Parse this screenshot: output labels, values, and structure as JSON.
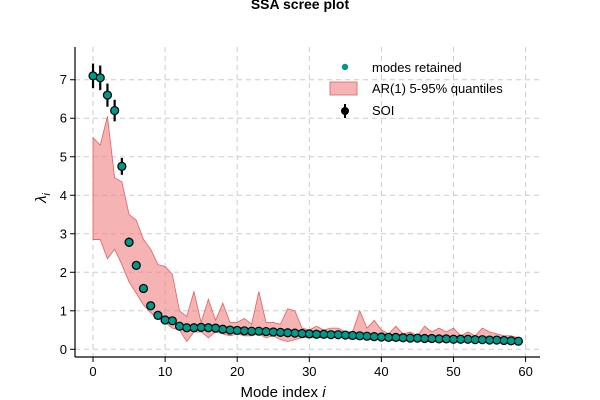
{
  "chart_data": {
    "type": "scatter",
    "title": "SSA scree plot",
    "xlabel": "Mode index i",
    "ylabel": "λ_i",
    "xlim": [
      -2.5,
      62
    ],
    "ylim": [
      -0.2,
      7.85
    ],
    "x_ticks": [
      0,
      10,
      20,
      30,
      40,
      50,
      60
    ],
    "y_ticks": [
      0,
      1,
      2,
      3,
      4,
      5,
      6,
      7
    ],
    "grid": true,
    "legend_position": "top-right",
    "colors": {
      "retained": "#009688",
      "band_fill": "#f08080",
      "band_edge": "#e06060",
      "soi": "#000000",
      "grid": "#cccccc"
    },
    "series": [
      {
        "name": "SOI",
        "kind": "errorbar",
        "x": [
          0,
          1,
          2,
          3,
          4,
          5,
          6,
          7,
          8,
          9,
          10,
          11,
          12,
          13,
          14,
          15,
          16,
          17,
          18,
          19,
          20,
          21,
          22,
          23,
          24,
          25,
          26,
          27,
          28,
          29,
          30,
          31,
          32,
          33,
          34,
          35,
          36,
          37,
          38,
          39,
          40,
          41,
          42,
          43,
          44,
          45,
          46,
          47,
          48,
          49,
          50,
          51,
          52,
          53,
          54,
          55,
          56,
          57,
          58,
          59
        ],
        "values": [
          7.1,
          7.05,
          6.6,
          6.2,
          4.75,
          2.78,
          2.18,
          1.58,
          1.13,
          0.88,
          0.76,
          0.74,
          0.6,
          0.56,
          0.56,
          0.57,
          0.56,
          0.55,
          0.52,
          0.5,
          0.49,
          0.48,
          0.47,
          0.47,
          0.46,
          0.45,
          0.44,
          0.43,
          0.42,
          0.41,
          0.4,
          0.39,
          0.39,
          0.38,
          0.38,
          0.37,
          0.36,
          0.35,
          0.34,
          0.33,
          0.32,
          0.31,
          0.31,
          0.3,
          0.29,
          0.29,
          0.28,
          0.28,
          0.27,
          0.27,
          0.26,
          0.26,
          0.26,
          0.25,
          0.25,
          0.24,
          0.24,
          0.23,
          0.22,
          0.21
        ],
        "err": [
          0.32,
          0.32,
          0.3,
          0.28,
          0.22,
          0.12,
          0.1,
          0.07,
          0.05,
          0.04,
          0.04,
          0.04,
          0.03,
          0.03,
          0.03,
          0.03,
          0.03,
          0.03,
          0.03,
          0.03,
          0.03,
          0.03,
          0.03,
          0.03,
          0.03,
          0.03,
          0.03,
          0.03,
          0.03,
          0.03,
          0.03,
          0.03,
          0.03,
          0.03,
          0.03,
          0.03,
          0.03,
          0.03,
          0.03,
          0.03,
          0.03,
          0.03,
          0.03,
          0.03,
          0.03,
          0.03,
          0.03,
          0.03,
          0.03,
          0.03,
          0.03,
          0.03,
          0.03,
          0.03,
          0.03,
          0.03,
          0.03,
          0.03,
          0.03,
          0.03
        ]
      },
      {
        "name": "modes retained",
        "kind": "markers",
        "x": [
          0,
          1,
          2,
          3,
          4,
          5,
          6,
          7,
          8,
          9,
          10,
          11,
          12,
          13,
          14,
          15,
          16,
          17,
          18,
          19,
          20,
          21,
          22,
          23,
          24,
          25,
          26,
          27,
          28,
          29,
          30,
          31,
          32,
          33,
          34,
          35,
          36,
          37,
          38,
          39,
          40,
          41,
          42,
          43,
          44,
          45,
          46,
          47,
          48,
          49,
          50,
          51,
          52,
          53,
          54,
          55,
          56,
          57,
          58,
          59
        ],
        "values": [
          7.1,
          7.05,
          6.6,
          6.2,
          4.75,
          2.78,
          2.18,
          1.58,
          1.13,
          0.88,
          0.76,
          0.74,
          0.6,
          0.56,
          0.56,
          0.57,
          0.56,
          0.55,
          0.52,
          0.5,
          0.49,
          0.48,
          0.47,
          0.47,
          0.46,
          0.45,
          0.44,
          0.43,
          0.42,
          0.41,
          0.4,
          0.39,
          0.39,
          0.38,
          0.38,
          0.37,
          0.36,
          0.35,
          0.34,
          0.33,
          0.32,
          0.31,
          0.31,
          0.3,
          0.29,
          0.29,
          0.28,
          0.28,
          0.27,
          0.27,
          0.26,
          0.26,
          0.26,
          0.25,
          0.25,
          0.24,
          0.24,
          0.23,
          0.22,
          0.21
        ]
      },
      {
        "name": "AR(1) 5-95% quantiles",
        "kind": "band",
        "x": [
          0,
          1,
          2,
          3,
          4,
          5,
          6,
          7,
          8,
          9,
          10,
          11,
          12,
          13,
          14,
          15,
          16,
          17,
          18,
          19,
          20,
          21,
          22,
          23,
          24,
          25,
          26,
          27,
          28,
          29,
          30,
          31,
          32,
          33,
          34,
          35,
          36,
          37,
          38,
          39,
          40,
          41,
          42,
          43,
          44,
          45,
          46,
          47,
          48,
          49,
          50,
          51,
          52,
          53,
          54,
          55,
          56,
          57,
          58,
          59
        ],
        "lower": [
          2.85,
          2.85,
          2.35,
          2.6,
          2.2,
          1.75,
          1.45,
          1.15,
          0.95,
          0.8,
          0.7,
          0.55,
          0.5,
          0.2,
          0.45,
          0.45,
          0.3,
          0.45,
          0.4,
          0.35,
          0.4,
          0.35,
          0.35,
          0.4,
          0.3,
          0.35,
          0.25,
          0.2,
          0.25,
          0.3,
          0.3,
          0.3,
          0.3,
          0.3,
          0.3,
          0.3,
          0.25,
          0.3,
          0.25,
          0.25,
          0.25,
          0.25,
          0.22,
          0.22,
          0.22,
          0.22,
          0.2,
          0.2,
          0.2,
          0.2,
          0.2,
          0.2,
          0.2,
          0.2,
          0.2,
          0.15,
          0.2,
          0.15,
          0.15,
          0.15
        ],
        "upper": [
          5.5,
          5.3,
          6.05,
          4.45,
          4.35,
          3.5,
          3.35,
          2.85,
          2.6,
          2.2,
          2.15,
          1.95,
          1.0,
          0.85,
          1.5,
          0.7,
          1.3,
          0.75,
          1.2,
          0.7,
          0.7,
          0.8,
          0.65,
          1.5,
          0.7,
          0.7,
          0.65,
          1.05,
          1.0,
          0.55,
          0.5,
          0.6,
          0.5,
          0.55,
          0.55,
          0.45,
          0.45,
          1.0,
          0.55,
          0.75,
          0.5,
          0.4,
          0.6,
          0.4,
          0.45,
          0.35,
          0.6,
          0.45,
          0.55,
          0.45,
          0.55,
          0.35,
          0.45,
          0.35,
          0.55,
          0.45,
          0.4,
          0.35,
          0.35,
          0.3
        ]
      }
    ]
  }
}
